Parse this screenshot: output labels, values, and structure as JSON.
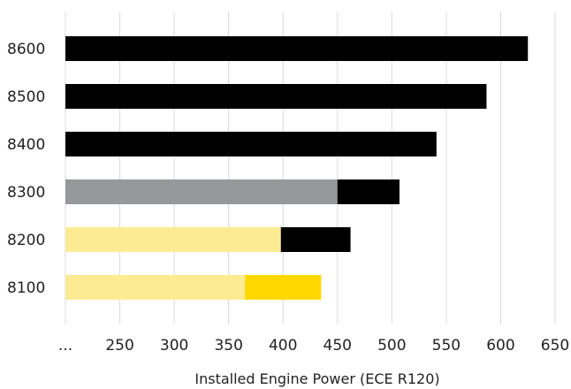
{
  "chart_data": {
    "type": "bar",
    "orientation": "horizontal",
    "stacked": true,
    "categories": [
      "8600",
      "8500",
      "8400",
      "8300",
      "8200",
      "8100"
    ],
    "segments": [
      [
        {
          "start": 200,
          "end": 625,
          "color": "#000000"
        }
      ],
      [
        {
          "start": 200,
          "end": 587,
          "color": "#000000"
        }
      ],
      [
        {
          "start": 200,
          "end": 541,
          "color": "#000000"
        }
      ],
      [
        {
          "start": 200,
          "end": 450,
          "color": "#97989a"
        },
        {
          "start": 450,
          "end": 507,
          "color": "#000000"
        }
      ],
      [
        {
          "start": 200,
          "end": 398,
          "color": "#fdeb94"
        },
        {
          "start": 398,
          "end": 462,
          "color": "#000000"
        }
      ],
      [
        {
          "start": 200,
          "end": 365,
          "color": "#fdeb94"
        },
        {
          "start": 365,
          "end": 435,
          "color": "#ffd800"
        }
      ]
    ],
    "xticks": [
      "...",
      "250",
      "300",
      "350",
      "400",
      "450",
      "500",
      "550",
      "600",
      "650"
    ],
    "xtick_values": [
      200,
      250,
      300,
      350,
      400,
      450,
      500,
      550,
      600,
      650
    ],
    "xlim": [
      200,
      650
    ],
    "xlabel": "Installed Engine Power (ECE R120)",
    "grid": "vertical"
  }
}
